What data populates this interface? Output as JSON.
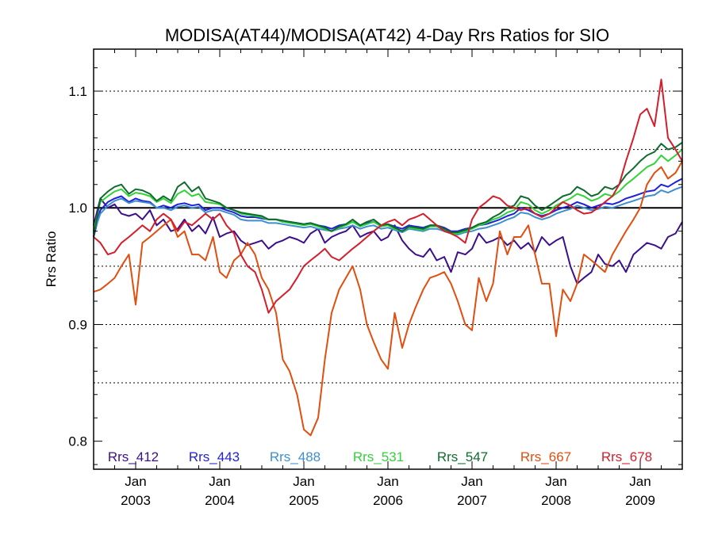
{
  "chart_data": {
    "type": "line",
    "title": "MODISA(AT44)/MODISA(AT42) 4-Day Rrs Ratios for SIO",
    "xlabel": "",
    "ylabel": "Rrs Ratio",
    "xlim": [
      2002.5,
      2009.5
    ],
    "ylim": [
      0.776,
      1.136
    ],
    "y_ticks": [
      0.8,
      0.9,
      1.0,
      1.1
    ],
    "y_tick_labels": [
      "0.8",
      "0.9",
      "1.0",
      "1.1"
    ],
    "y_gridlines": [
      0.85,
      0.9,
      0.95,
      1.05,
      1.1
    ],
    "reference_line": 1.0,
    "x_ticks": [
      2003,
      2004,
      2005,
      2006,
      2007,
      2008,
      2009
    ],
    "x_tick_labels": [
      {
        "month": "Jan",
        "year": "2003"
      },
      {
        "month": "Jan",
        "year": "2004"
      },
      {
        "month": "Jan",
        "year": "2005"
      },
      {
        "month": "Jan",
        "year": "2006"
      },
      {
        "month": "Jan",
        "year": "2007"
      },
      {
        "month": "Jan",
        "year": "2008"
      },
      {
        "month": "Jan",
        "year": "2009"
      }
    ],
    "x": [
      2002.5,
      2002.58,
      2002.67,
      2002.75,
      2002.83,
      2002.92,
      2003.0,
      2003.08,
      2003.17,
      2003.25,
      2003.33,
      2003.42,
      2003.5,
      2003.58,
      2003.67,
      2003.75,
      2003.83,
      2003.92,
      2004.0,
      2004.08,
      2004.17,
      2004.25,
      2004.33,
      2004.42,
      2004.5,
      2004.58,
      2004.67,
      2004.75,
      2004.83,
      2004.92,
      2005.0,
      2005.08,
      2005.17,
      2005.25,
      2005.33,
      2005.42,
      2005.5,
      2005.58,
      2005.67,
      2005.75,
      2005.83,
      2005.92,
      2006.0,
      2006.08,
      2006.17,
      2006.25,
      2006.33,
      2006.42,
      2006.5,
      2006.58,
      2006.67,
      2006.75,
      2006.83,
      2006.92,
      2007.0,
      2007.08,
      2007.17,
      2007.25,
      2007.33,
      2007.42,
      2007.5,
      2007.58,
      2007.67,
      2007.75,
      2007.83,
      2007.92,
      2008.0,
      2008.08,
      2008.17,
      2008.25,
      2008.33,
      2008.42,
      2008.5,
      2008.58,
      2008.67,
      2008.75,
      2008.83,
      2008.92,
      2009.0,
      2009.08,
      2009.17,
      2009.25,
      2009.33,
      2009.42,
      2009.5
    ],
    "legend_position": "bottom",
    "series": [
      {
        "name": "Rrs_412",
        "color": "#3b0f8c",
        "values": [
          0.985,
          1.008,
          1.0,
          1.003,
          0.995,
          0.993,
          0.995,
          0.99,
          0.998,
          0.985,
          0.99,
          0.98,
          0.982,
          0.99,
          0.98,
          0.985,
          0.978,
          0.992,
          0.975,
          0.978,
          0.98,
          0.972,
          0.968,
          0.97,
          0.972,
          0.965,
          0.97,
          0.972,
          0.975,
          0.973,
          0.97,
          0.978,
          0.982,
          0.97,
          0.975,
          0.978,
          0.98,
          0.985,
          0.975,
          0.978,
          0.98,
          0.972,
          0.975,
          0.985,
          0.972,
          0.965,
          0.96,
          0.958,
          0.965,
          0.955,
          0.958,
          0.945,
          0.962,
          0.96,
          0.965,
          0.978,
          0.97,
          0.972,
          0.975,
          0.968,
          0.972,
          0.965,
          0.97,
          0.962,
          0.975,
          0.968,
          0.972,
          0.975,
          0.95,
          0.935,
          0.94,
          0.945,
          0.96,
          0.952,
          0.95,
          0.955,
          0.945,
          0.96,
          0.965,
          0.97,
          0.968,
          0.965,
          0.975,
          0.978,
          0.988
        ]
      },
      {
        "name": "Rrs_443",
        "color": "#1f1fdc",
        "values": [
          0.975,
          0.998,
          1.005,
          1.008,
          1.01,
          1.005,
          1.008,
          1.006,
          1.005,
          1.0,
          1.002,
          1.0,
          1.003,
          1.004,
          1.002,
          1.003,
          0.998,
          1.0,
          1.0,
          0.998,
          0.996,
          0.993,
          0.992,
          0.992,
          0.991,
          0.99,
          0.99,
          0.988,
          0.988,
          0.987,
          0.986,
          0.987,
          0.985,
          0.984,
          0.982,
          0.985,
          0.986,
          0.988,
          0.985,
          0.987,
          0.988,
          0.985,
          0.986,
          0.984,
          0.982,
          0.985,
          0.984,
          0.983,
          0.985,
          0.985,
          0.983,
          0.98,
          0.98,
          0.982,
          0.983,
          0.985,
          0.986,
          0.988,
          0.99,
          0.993,
          0.995,
          1.0,
          0.998,
          0.995,
          0.993,
          0.995,
          0.998,
          1.0,
          1.002,
          1.005,
          1.003,
          1.0,
          1.002,
          1.004,
          1.003,
          1.005,
          1.008,
          1.01,
          1.012,
          1.014,
          1.015,
          1.02,
          1.018,
          1.022,
          1.025
        ]
      },
      {
        "name": "Rrs_488",
        "color": "#3e8fcf",
        "values": [
          0.978,
          0.995,
          1.002,
          1.006,
          1.008,
          1.004,
          1.006,
          1.005,
          1.004,
          1.0,
          1.0,
          0.998,
          1.001,
          1.002,
          1.0,
          1.001,
          0.996,
          0.998,
          0.998,
          0.996,
          0.994,
          0.99,
          0.989,
          0.989,
          0.989,
          0.987,
          0.987,
          0.986,
          0.985,
          0.984,
          0.983,
          0.984,
          0.982,
          0.981,
          0.98,
          0.982,
          0.983,
          0.985,
          0.982,
          0.984,
          0.985,
          0.982,
          0.983,
          0.981,
          0.979,
          0.982,
          0.981,
          0.98,
          0.982,
          0.982,
          0.98,
          0.978,
          0.977,
          0.979,
          0.98,
          0.982,
          0.983,
          0.985,
          0.987,
          0.99,
          0.992,
          0.996,
          0.995,
          0.992,
          0.99,
          0.992,
          0.995,
          0.997,
          0.999,
          1.002,
          1.0,
          0.998,
          0.999,
          1.001,
          1.0,
          1.002,
          1.004,
          1.006,
          1.008,
          1.01,
          1.011,
          1.015,
          1.013,
          1.016,
          1.018
        ]
      },
      {
        "name": "Rrs_531",
        "color": "#33d13a",
        "values": [
          0.98,
          1.005,
          1.01,
          1.014,
          1.016,
          1.01,
          1.013,
          1.012,
          1.01,
          1.005,
          1.008,
          1.004,
          1.012,
          1.015,
          1.01,
          1.012,
          1.005,
          1.004,
          1.003,
          1.0,
          0.998,
          0.995,
          0.994,
          0.993,
          0.992,
          0.99,
          0.99,
          0.988,
          0.987,
          0.986,
          0.985,
          0.986,
          0.984,
          0.982,
          0.98,
          0.983,
          0.985,
          0.988,
          0.984,
          0.986,
          0.988,
          0.984,
          0.985,
          0.982,
          0.98,
          0.983,
          0.982,
          0.981,
          0.984,
          0.984,
          0.981,
          0.978,
          0.978,
          0.98,
          0.982,
          0.985,
          0.987,
          0.99,
          0.992,
          0.996,
          0.998,
          1.005,
          1.003,
          0.998,
          0.995,
          0.998,
          1.002,
          1.005,
          1.008,
          1.012,
          1.01,
          1.006,
          1.008,
          1.012,
          1.01,
          1.014,
          1.02,
          1.025,
          1.03,
          1.035,
          1.038,
          1.045,
          1.04,
          1.045,
          1.05
        ]
      },
      {
        "name": "Rrs_547",
        "color": "#0f6b2e",
        "values": [
          0.975,
          1.008,
          1.014,
          1.018,
          1.02,
          1.012,
          1.016,
          1.015,
          1.012,
          1.006,
          1.01,
          1.006,
          1.018,
          1.022,
          1.014,
          1.018,
          1.008,
          1.006,
          1.004,
          1.0,
          0.998,
          0.996,
          0.995,
          0.994,
          0.993,
          0.99,
          0.99,
          0.989,
          0.988,
          0.987,
          0.986,
          0.987,
          0.985,
          0.983,
          0.98,
          0.984,
          0.986,
          0.99,
          0.985,
          0.988,
          0.99,
          0.985,
          0.986,
          0.983,
          0.98,
          0.984,
          0.983,
          0.982,
          0.985,
          0.985,
          0.982,
          0.979,
          0.979,
          0.981,
          0.983,
          0.986,
          0.988,
          0.992,
          0.995,
          1.0,
          1.002,
          1.01,
          1.008,
          1.002,
          0.998,
          1.002,
          1.006,
          1.01,
          1.012,
          1.018,
          1.015,
          1.01,
          1.012,
          1.018,
          1.016,
          1.02,
          1.028,
          1.034,
          1.04,
          1.045,
          1.048,
          1.055,
          1.05,
          1.052,
          1.056
        ]
      },
      {
        "name": "Rrs_667",
        "color": "#e04f10",
        "values": [
          0.928,
          0.93,
          0.935,
          0.94,
          0.95,
          0.96,
          0.917,
          0.97,
          0.975,
          0.98,
          0.985,
          0.99,
          0.975,
          0.98,
          0.96,
          0.96,
          0.955,
          0.975,
          0.945,
          0.94,
          0.955,
          0.96,
          0.97,
          0.96,
          0.94,
          0.93,
          0.91,
          0.87,
          0.86,
          0.84,
          0.81,
          0.805,
          0.82,
          0.87,
          0.91,
          0.93,
          0.94,
          0.95,
          0.93,
          0.9,
          0.885,
          0.87,
          0.862,
          0.91,
          0.88,
          0.9,
          0.915,
          0.93,
          0.94,
          0.942,
          0.945,
          0.935,
          0.92,
          0.9,
          0.895,
          0.94,
          0.92,
          0.935,
          0.98,
          0.96,
          0.975,
          0.975,
          0.985,
          0.96,
          0.935,
          0.935,
          0.89,
          0.93,
          0.92,
          0.935,
          0.96,
          0.955,
          0.95,
          0.945,
          0.96,
          0.97,
          0.98,
          0.99,
          1.0,
          1.02,
          1.03,
          1.035,
          1.025,
          1.03,
          1.04
        ]
      },
      {
        "name": "Rrs_678",
        "color": "#d41e2b",
        "values": [
          0.975,
          0.97,
          0.96,
          0.962,
          0.97,
          0.975,
          0.98,
          0.985,
          0.98,
          0.99,
          0.995,
          0.99,
          0.98,
          0.988,
          0.985,
          0.99,
          0.995,
          0.99,
          0.995,
          0.985,
          0.978,
          0.96,
          0.95,
          0.945,
          0.93,
          0.91,
          0.92,
          0.925,
          0.93,
          0.94,
          0.95,
          0.955,
          0.96,
          0.965,
          0.958,
          0.955,
          0.96,
          0.965,
          0.97,
          0.975,
          0.98,
          0.985,
          0.988,
          0.99,
          0.985,
          0.99,
          0.992,
          0.995,
          0.99,
          0.985,
          0.98,
          0.978,
          0.975,
          0.97,
          0.99,
          1.0,
          1.005,
          1.01,
          1.008,
          1.002,
          1.0,
          0.998,
          1.0,
          0.995,
          0.992,
          0.995,
          1.0,
          1.005,
          1.002,
          0.998,
          0.995,
          0.996,
          1.0,
          1.005,
          1.01,
          1.02,
          1.04,
          1.06,
          1.08,
          1.085,
          1.07,
          1.11,
          1.06,
          1.05,
          1.04
        ]
      }
    ]
  }
}
